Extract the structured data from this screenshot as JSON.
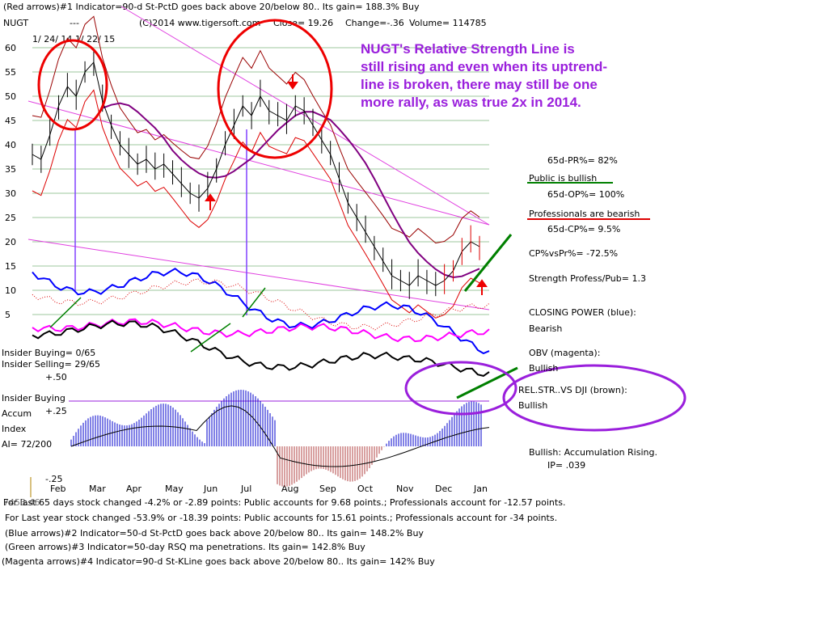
{
  "header": {
    "line1": "(Red arrows)#1 Indicator=90-d St-PctD goes back above 20/below 80.. Its gain= 188.3% Buy",
    "ticker": "NUGT",
    "dashes": "---",
    "source": "(C)2014 www.tigersoft.com",
    "close": "Close= 19.26",
    "change": "Change=-.36",
    "volume": "Volume= 114785",
    "dates": "1/ 24/ 14   1/ 22/ 15"
  },
  "annotation": {
    "line1": "NUGT's Relative Strength Line is",
    "line2": "still rising and even when its uptrend-",
    "line3": "line is broken, there may still be one",
    "line4": "more rally, as was true 2x in 2014."
  },
  "right_panel": {
    "pr": "65d-PR%= 82%",
    "public": "Public is bullish",
    "op": "65d-OP%= 100%",
    "professionals": "Professionals are bearish",
    "cp": "65d-CP%= 9.5%",
    "cpvspr": "CP%vsPr%= -72.5%",
    "strength": "Strength Profess/Pub= 1.3",
    "closing_power": "CLOSING POWER (blue):",
    "closing_power_val": "Bearish",
    "obv": "OBV (magenta):",
    "obv_val": "Bullish",
    "relstr": "REL.STR..VS DJI (brown):",
    "relstr_val": "Bullish",
    "accum": "Bullish: Accumulation Rising.",
    "ip": "IP= .039"
  },
  "left_panel": {
    "insider_buying": "Insider Buying= 0/65",
    "insider_selling": "Insider Selling= 29/65",
    "plus50": "+.50",
    "insider_buying_line": "Insider Buying",
    "accum": "Accum",
    "plus25": "+.25",
    "index": "Index",
    "ai": "AI= 72/200",
    "minus25": "-.25"
  },
  "footer": {
    "line1": "For last 65 days stock changed -4.2% or -2.89 points:  Public accounts for  9.68 points.;  Professionals account for -12.57 points.",
    "line2": "For Last year stock changed -53.9% or -18.39 points:  Public accounts for  15.61 points.;  Professionals account for -34 points.",
    "line3": "(Blue arrows)#2 Indicator=50-d St-PctD goes back above 20/below 80.. Its gain= 148.2% Buy",
    "line4": "(Green arrows)#3 Indicator=50-day RSQ ma penetrations. Its gain= 142.8% Buy",
    "line5": "(Magenta arrows)#4 Indicator=90-d St-KLine goes back above 20/below 80.. Its gain= 142% Buy",
    "overlap": "7453.46"
  },
  "colors": {
    "price": "#000000",
    "band": "#dd0000",
    "ma": "#800080",
    "closing_power": "#0000ff",
    "obv": "#ff00ff",
    "relstr": "#000000",
    "trend": "#008000",
    "circle_red": "#ee0000",
    "circle_purple": "#9a1fdc",
    "annotation": "#9a1fdc"
  },
  "chart_data": {
    "type": "line",
    "ylim": [
      0,
      62
    ],
    "y_ticks": [
      "60",
      "55",
      "50",
      "45",
      "40",
      "35",
      "30",
      "25",
      "20",
      "15",
      "10",
      "5"
    ],
    "months": [
      "Feb",
      "Mar",
      "Apr",
      "May",
      "Jun",
      "Jul",
      "Aug",
      "Sep",
      "Oct",
      "Nov",
      "Dec",
      "Jan"
    ],
    "price_close": [
      38,
      37,
      42,
      48,
      52,
      50,
      55,
      57,
      49,
      44,
      40,
      38,
      36,
      37,
      35,
      36,
      34,
      32,
      30,
      29,
      31,
      35,
      40,
      44,
      48,
      46,
      50,
      47,
      46,
      45,
      48,
      47,
      44,
      41,
      38,
      33,
      28,
      25,
      22,
      19,
      16,
      13,
      12,
      11,
      13,
      12,
      11,
      12,
      14,
      18,
      20,
      19
    ]
  }
}
